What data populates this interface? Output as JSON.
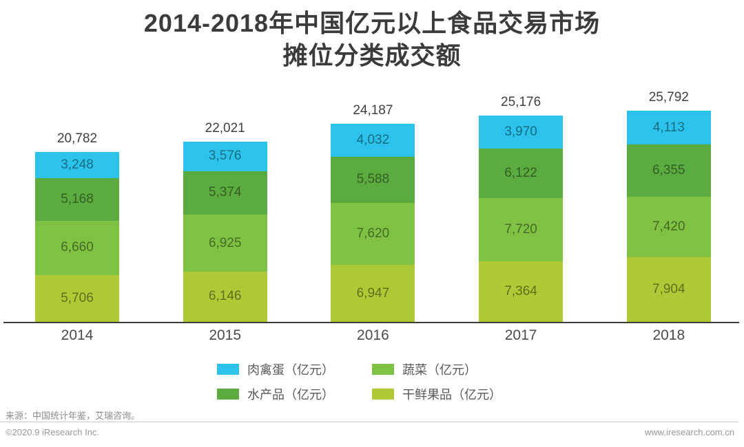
{
  "title": {
    "line1": "2014-2018年中国亿元以上食品交易市场",
    "line2": "摊位分类成交额"
  },
  "chart_data": {
    "type": "bar",
    "stacked": true,
    "title": "2014-2018年中国亿元以上食品交易市场摊位分类成交额",
    "xlabel": "",
    "ylabel": "",
    "unit": "亿元",
    "grid": false,
    "legend_position": "bottom",
    "ylim": [
      0,
      28500
    ],
    "categories": [
      "2014",
      "2015",
      "2016",
      "2017",
      "2018"
    ],
    "totals": [
      20782,
      22021,
      24187,
      25176,
      25792
    ],
    "series": [
      {
        "name": "肉禽蛋（亿元）",
        "color": "#2bc3ec",
        "values": [
          3248,
          3576,
          4032,
          3970,
          4113
        ]
      },
      {
        "name": "水产品（亿元）",
        "color": "#5cab41",
        "values": [
          5168,
          5374,
          5588,
          6122,
          6355
        ]
      },
      {
        "name": "蔬菜（亿元）",
        "color": "#7fc142",
        "values": [
          6660,
          6925,
          7620,
          7720,
          7420
        ]
      },
      {
        "name": "干鲜果品（亿元）",
        "color": "#adc935",
        "values": [
          5706,
          6146,
          6947,
          7364,
          7904
        ]
      }
    ],
    "legend_order": [
      0,
      2,
      1,
      3
    ]
  },
  "footer": {
    "source": "来源：中国统计年鉴，艾瑞咨询。",
    "copyright": "©2020.9 iResearch Inc.",
    "website": "www.iresearch.com.cn"
  }
}
